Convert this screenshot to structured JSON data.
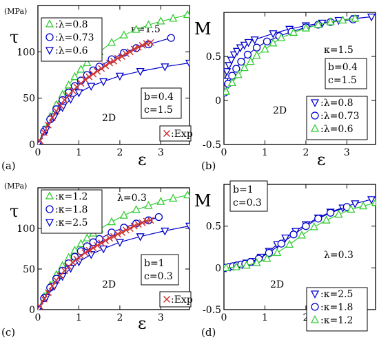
{
  "chart_data": [
    {
      "id": "a",
      "type": "line",
      "panel_label": "(a)",
      "ylabel": "τ",
      "yunit": "(MPa)",
      "xlabel": "ε",
      "xlim": [
        0,
        3.7
      ],
      "ylim": [
        0,
        150
      ],
      "xticks": [
        0,
        1,
        2,
        3
      ],
      "yticks": [
        0,
        50,
        100
      ],
      "param_text": "κ=1.5",
      "box_lines": [
        "b=0.4",
        "c=1.5"
      ],
      "dim_text": "2D",
      "legend_lines": [
        ":λ=0.8",
        ":λ=0.73",
        ":λ=0.6"
      ],
      "legend_position": "top-left",
      "exp_legend": ":Exp",
      "exp_legend_position": "bottom-right",
      "series": [
        {
          "name": ":λ=0.8",
          "marker": "triangle-up",
          "color": "#33cc33",
          "x": [
            0,
            0.15,
            0.3,
            0.45,
            0.6,
            0.75,
            0.9,
            1.05,
            1.2,
            1.35,
            1.5,
            1.8,
            2.1,
            2.4,
            2.7,
            3.0,
            3.3,
            3.65
          ],
          "y": [
            0,
            16,
            30,
            43,
            54,
            64,
            73,
            81,
            88,
            95,
            100,
            110,
            118,
            124,
            129,
            133,
            136,
            140
          ]
        },
        {
          "name": ":λ=0.73",
          "marker": "circle",
          "color": "#0000cc",
          "x": [
            0,
            0.15,
            0.3,
            0.45,
            0.6,
            0.75,
            0.9,
            1.05,
            1.2,
            1.35,
            1.5,
            1.8,
            2.1,
            2.4,
            2.7,
            3.25
          ],
          "y": [
            0,
            14,
            27,
            38,
            48,
            56,
            63,
            69,
            75,
            80,
            84,
            92,
            99,
            104,
            108,
            115
          ]
        },
        {
          "name": ":λ=0.6",
          "marker": "triangle-down",
          "color": "#0000cc",
          "x": [
            0,
            0.2,
            0.4,
            0.6,
            0.8,
            1.0,
            1.3,
            1.6,
            2.0,
            2.5,
            3.1,
            3.7
          ],
          "y": [
            0,
            16,
            30,
            40,
            49,
            56,
            63,
            68,
            74,
            79,
            84,
            88
          ]
        },
        {
          "name": ":Exp",
          "marker": "cross",
          "color": "#cc3333",
          "x": [
            0.05,
            0.15,
            0.25,
            0.35,
            0.45,
            0.55,
            0.65,
            0.75,
            0.85,
            0.95,
            1.05,
            1.15,
            1.25,
            1.35,
            1.45,
            1.55,
            1.65,
            1.75,
            1.85,
            1.95,
            2.05,
            2.15,
            2.25,
            2.35,
            2.45,
            2.55,
            2.65,
            2.75
          ],
          "y": [
            4,
            13,
            21,
            29,
            36,
            42,
            48,
            53,
            58,
            62,
            66,
            70,
            73,
            76,
            79,
            82,
            85,
            88,
            90,
            93,
            95,
            98,
            100,
            103,
            105,
            107,
            109,
            110
          ]
        }
      ]
    },
    {
      "id": "b",
      "type": "line",
      "panel_label": "(b)",
      "ylabel": "M",
      "xlabel": "ε",
      "xlim": [
        0,
        3.7
      ],
      "ylim": [
        -0.5,
        1.0
      ],
      "xticks": [
        0,
        1,
        2,
        3
      ],
      "yticks": [
        -0.5,
        0,
        0.5
      ],
      "param_text": "κ=1.5",
      "box_lines": [
        "b=0.4",
        "c=1.5"
      ],
      "dim_text": "2D",
      "legend_lines": [
        ":λ=0.8",
        ":λ=0.73",
        ":λ=0.6"
      ],
      "legend_position": "bottom-right",
      "series": [
        {
          "name": ":λ=0.8",
          "marker": "triangle-down",
          "color": "#0000cc",
          "x": [
            0.02,
            0.07,
            0.12,
            0.18,
            0.25,
            0.32,
            0.4,
            0.5,
            0.6,
            0.75,
            1.2,
            1.6,
            2.0,
            2.4,
            2.8,
            3.2,
            3.6
          ],
          "y": [
            0.22,
            0.33,
            0.4,
            0.46,
            0.52,
            0.56,
            0.6,
            0.63,
            0.66,
            0.69,
            0.76,
            0.81,
            0.85,
            0.88,
            0.91,
            0.93,
            0.95
          ]
        },
        {
          "name": ":λ=0.73",
          "marker": "circle",
          "color": "#0000cc",
          "x": [
            0.02,
            0.1,
            0.2,
            0.3,
            0.42,
            0.58,
            0.8,
            1.05,
            1.35,
            1.65,
            2.0,
            2.3,
            2.6,
            3.15
          ],
          "y": [
            0.09,
            0.19,
            0.28,
            0.36,
            0.44,
            0.52,
            0.6,
            0.67,
            0.73,
            0.78,
            0.83,
            0.86,
            0.89,
            0.92
          ]
        },
        {
          "name": ":λ=0.6",
          "marker": "triangle-up",
          "color": "#33cc33",
          "x": [
            0.05,
            0.2,
            0.35,
            0.5,
            0.65,
            0.8,
            1.0,
            1.2,
            1.4,
            1.7,
            2.0,
            2.3,
            2.6,
            2.9,
            3.2
          ],
          "y": [
            0.1,
            0.2,
            0.29,
            0.37,
            0.44,
            0.51,
            0.58,
            0.65,
            0.71,
            0.77,
            0.82,
            0.86,
            0.89,
            0.91,
            0.93
          ]
        }
      ]
    },
    {
      "id": "c",
      "type": "line",
      "panel_label": "(c)",
      "ylabel": "τ",
      "yunit": "(MPa)",
      "xlabel": "ε",
      "xlim": [
        0,
        3.7
      ],
      "ylim": [
        0,
        150
      ],
      "xticks": [
        0,
        1,
        2,
        3
      ],
      "yticks": [
        0,
        50,
        100
      ],
      "param_text": "λ=0.3",
      "box_lines": [
        "b=1",
        "c=0.3"
      ],
      "dim_text": "2D",
      "legend_lines": [
        ":κ=1.2",
        ":κ=1.8",
        ":κ=2.5"
      ],
      "legend_position": "top-left",
      "exp_legend": ":Exp",
      "exp_legend_position": "bottom-right",
      "series": [
        {
          "name": ":κ=1.2",
          "marker": "triangle-up",
          "color": "#33cc33",
          "x": [
            0,
            0.15,
            0.3,
            0.45,
            0.6,
            0.75,
            0.9,
            1.05,
            1.2,
            1.35,
            1.5,
            1.8,
            2.1,
            2.4,
            2.7,
            3.0,
            3.3,
            3.65
          ],
          "y": [
            0,
            16,
            30,
            43,
            54,
            64,
            73,
            81,
            88,
            94,
            99,
            108,
            116,
            123,
            128,
            133,
            137,
            141
          ]
        },
        {
          "name": ":κ=1.8",
          "marker": "circle",
          "color": "#0000cc",
          "x": [
            0,
            0.15,
            0.3,
            0.45,
            0.6,
            0.75,
            0.9,
            1.05,
            1.2,
            1.35,
            1.5,
            1.8,
            2.1,
            2.4,
            2.7,
            2.95
          ],
          "y": [
            0,
            14,
            27,
            38,
            48,
            57,
            65,
            72,
            78,
            83,
            87,
            95,
            101,
            106,
            110,
            114
          ]
        },
        {
          "name": ":κ=2.5",
          "marker": "triangle-down",
          "color": "#0000cc",
          "x": [
            0,
            0.2,
            0.4,
            0.6,
            0.8,
            1.0,
            1.3,
            1.6,
            2.0,
            2.5,
            3.1,
            3.7
          ],
          "y": [
            0,
            15,
            29,
            41,
            51,
            59,
            68,
            75,
            83,
            90,
            97,
            103
          ]
        },
        {
          "name": ":Exp",
          "marker": "cross",
          "color": "#cc3333",
          "x": [
            0.05,
            0.15,
            0.25,
            0.35,
            0.45,
            0.55,
            0.65,
            0.75,
            0.85,
            0.95,
            1.05,
            1.15,
            1.25,
            1.35,
            1.45,
            1.55,
            1.65,
            1.75,
            1.85,
            1.95,
            2.05,
            2.15,
            2.25,
            2.35,
            2.45,
            2.55,
            2.65,
            2.75
          ],
          "y": [
            4,
            13,
            21,
            29,
            36,
            42,
            48,
            53,
            58,
            62,
            66,
            70,
            73,
            76,
            79,
            82,
            85,
            88,
            90,
            93,
            95,
            98,
            100,
            103,
            105,
            107,
            109,
            110
          ]
        }
      ]
    },
    {
      "id": "d",
      "type": "line",
      "panel_label": "(d)",
      "ylabel": "M",
      "xlabel": "ε",
      "xlim": [
        0,
        3.7
      ],
      "ylim": [
        -0.5,
        1.0
      ],
      "xticks": [
        0,
        1,
        2,
        3
      ],
      "yticks": [
        -0.5,
        0,
        0.5
      ],
      "param_text": "λ=0.3",
      "box_lines": [
        "b=1",
        "c=0.3"
      ],
      "dim_text": "2D",
      "legend_lines": [
        ":κ=2.5",
        ":κ=1.8",
        ":κ=1.2"
      ],
      "legend_position": "bottom-right",
      "series": [
        {
          "name": ":κ=2.5",
          "marker": "triangle-down",
          "color": "#0000cc",
          "x": [
            0.05,
            0.15,
            0.25,
            0.35,
            0.45,
            0.55,
            0.7,
            0.9,
            1.1,
            1.3,
            1.5,
            1.75,
            2.0,
            2.3,
            2.6,
            2.9,
            3.2,
            3.6
          ],
          "y": [
            0.0,
            0.01,
            0.02,
            0.03,
            0.04,
            0.06,
            0.08,
            0.13,
            0.2,
            0.28,
            0.36,
            0.44,
            0.52,
            0.6,
            0.67,
            0.72,
            0.77,
            0.82
          ]
        },
        {
          "name": ":κ=1.8",
          "marker": "circle",
          "color": "#0000cc",
          "x": [
            0.02,
            0.12,
            0.22,
            0.32,
            0.42,
            0.52,
            0.65,
            0.85,
            1.1,
            1.4,
            1.7,
            2.0,
            2.3,
            2.6,
            3.0
          ],
          "y": [
            0.0,
            0.01,
            0.02,
            0.03,
            0.04,
            0.05,
            0.07,
            0.11,
            0.18,
            0.29,
            0.4,
            0.5,
            0.59,
            0.66,
            0.73
          ]
        },
        {
          "name": ":κ=1.2",
          "marker": "triangle-up",
          "color": "#33cc33",
          "x": [
            0.05,
            0.3,
            0.55,
            0.8,
            1.05,
            1.3,
            1.6,
            1.9,
            2.2,
            2.5,
            2.8,
            3.1,
            3.4,
            3.7
          ],
          "y": [
            0.0,
            0.01,
            0.03,
            0.06,
            0.11,
            0.18,
            0.28,
            0.39,
            0.49,
            0.57,
            0.64,
            0.7,
            0.74,
            0.78
          ]
        }
      ]
    }
  ]
}
